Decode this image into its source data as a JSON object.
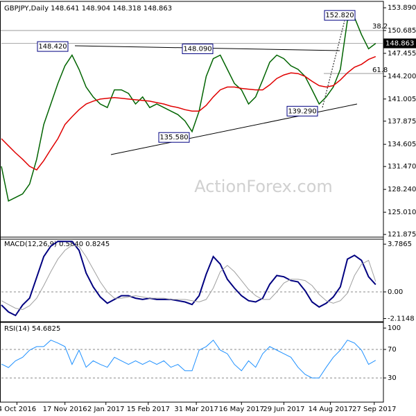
{
  "chart_data": [
    {
      "type": "line",
      "title": "GBPJPY,Daily  148.641 148.904 148.318 148.863",
      "x": [
        0,
        5,
        10,
        15,
        20,
        25,
        30,
        35,
        40,
        45,
        50,
        55,
        60,
        65,
        70,
        75,
        80,
        85,
        90,
        95,
        100,
        105,
        110,
        115,
        120,
        125,
        130,
        135,
        140,
        145,
        150,
        155,
        160,
        165,
        170,
        175,
        180,
        185,
        190,
        195,
        200,
        205,
        210,
        215,
        220,
        225,
        230,
        235,
        240,
        245,
        250,
        255,
        260,
        265
      ],
      "xlim": [
        0,
        270
      ],
      "ylim": [
        121.4,
        154.5
      ],
      "yticks": [
        {
          "value": 153.89,
          "label": "153.890"
        },
        150.685,
        147.455,
        {
          "value": 144.2,
          "label": "144.200"
        },
        141.005,
        137.875,
        134.605,
        {
          "value": 131.47,
          "label": "131.470"
        },
        {
          "value": 128.24,
          "label": "128.240"
        },
        {
          "value": 125.01,
          "label": "125.010"
        },
        121.875
      ],
      "series": [
        {
          "color": "#006400",
          "values": [
            131.5,
            126.6,
            127.1,
            127.6,
            129.0,
            132.5,
            137.4,
            140.3,
            143.2,
            145.7,
            147.2,
            145.2,
            142.7,
            141.3,
            140.3,
            139.8,
            142.3,
            142.3,
            141.8,
            140.3,
            141.3,
            139.8,
            140.3,
            139.8,
            139.3,
            138.8,
            137.9,
            136.4,
            139.3,
            144.2,
            146.7,
            147.2,
            145.2,
            143.2,
            142.3,
            140.3,
            141.3,
            143.7,
            146.2,
            147.2,
            146.7,
            145.7,
            145.2,
            144.2,
            142.3,
            140.3,
            141.3,
            142.7,
            145.2,
            152.1,
            152.5,
            150.1,
            148.1,
            148.863
          ]
        },
        {
          "color": "#e00000",
          "values": [
            135.4,
            134.4,
            133.4,
            132.5,
            131.5,
            131.0,
            132.3,
            133.9,
            135.4,
            137.4,
            138.5,
            139.5,
            140.3,
            140.7,
            141.0,
            141.1,
            141.2,
            141.1,
            141.0,
            140.9,
            140.8,
            140.7,
            140.5,
            140.3,
            140.0,
            139.8,
            139.5,
            139.3,
            139.3,
            140.1,
            141.3,
            142.3,
            142.7,
            142.7,
            142.5,
            142.4,
            142.3,
            142.3,
            143.0,
            143.9,
            144.4,
            144.7,
            144.6,
            144.2,
            143.5,
            142.9,
            142.7,
            142.9,
            143.7,
            144.7,
            145.5,
            145.9,
            146.6,
            147.0
          ]
        }
      ],
      "annotations": [
        {
          "value": 152.82,
          "label": "152.820"
        },
        {
          "value": 148.42,
          "label": "148.420"
        },
        {
          "value": 148.09,
          "label": "148.090"
        },
        {
          "value": 139.29,
          "label": "139.290"
        },
        {
          "value": 135.58,
          "label": "135.580"
        }
      ],
      "current_price": 148.863,
      "fib_levels": [
        38.2,
        61.8
      ],
      "watermark": "ActionForex.com"
    },
    {
      "type": "line",
      "title": "MACD(12,26,9) 0.5840 0.8245",
      "x": [
        0,
        5,
        10,
        15,
        20,
        25,
        30,
        35,
        40,
        45,
        50,
        55,
        60,
        65,
        70,
        75,
        80,
        85,
        90,
        95,
        100,
        105,
        110,
        115,
        120,
        125,
        130,
        135,
        140,
        145,
        150,
        155,
        160,
        165,
        170,
        175,
        180,
        185,
        190,
        195,
        200,
        205,
        210,
        215,
        220,
        225,
        230,
        235,
        240,
        245,
        250,
        255,
        260,
        265
      ],
      "xlim": [
        0,
        270
      ],
      "ylim": [
        -2.31,
        4.18
      ],
      "yticks": [
        3.7865,
        {
          "value": 0,
          "label": "0.00"
        },
        -2.1148
      ],
      "levels": [
        0
      ],
      "series": [
        {
          "color": "#000080",
          "width": 2,
          "values": [
            -1.04,
            -1.59,
            -1.87,
            -1.04,
            -0.49,
            1.15,
            2.8,
            3.63,
            4.01,
            4.0,
            4.0,
            3.3,
            1.5,
            0.4,
            -0.4,
            -0.9,
            -0.6,
            -0.3,
            -0.3,
            -0.5,
            -0.6,
            -0.5,
            -0.6,
            -0.6,
            -0.6,
            -0.7,
            -0.8,
            -1.0,
            -0.3,
            1.4,
            2.8,
            2.2,
            1.0,
            0.3,
            -0.3,
            -0.7,
            -0.8,
            -0.5,
            0.6,
            1.3,
            1.2,
            0.9,
            0.8,
            0.1,
            -0.8,
            -1.2,
            -0.9,
            -0.4,
            0.4,
            2.6,
            2.9,
            2.5,
            1.2,
            0.584
          ]
        },
        {
          "color": "#a0a0a0",
          "width": 1,
          "values": [
            -0.7,
            -1.0,
            -1.3,
            -1.4,
            -1.1,
            -0.5,
            0.5,
            1.6,
            2.6,
            3.3,
            3.7,
            3.6,
            2.8,
            1.8,
            0.8,
            0.0,
            -0.5,
            -0.5,
            -0.4,
            -0.3,
            -0.4,
            -0.5,
            -0.5,
            -0.5,
            -0.6,
            -0.6,
            -0.6,
            -0.7,
            -0.8,
            -0.6,
            0.3,
            1.6,
            2.1,
            1.6,
            0.9,
            0.2,
            -0.3,
            -0.6,
            -0.6,
            0.0,
            0.7,
            1.0,
            1.0,
            0.9,
            0.5,
            -0.2,
            -0.7,
            -0.9,
            -0.7,
            -0.1,
            1.3,
            2.2,
            2.5,
            0.8245
          ]
        }
      ]
    },
    {
      "type": "line",
      "title": "RSI(14) 54.6825",
      "x": [
        0,
        5,
        10,
        15,
        20,
        25,
        30,
        35,
        40,
        45,
        50,
        55,
        60,
        65,
        70,
        75,
        80,
        85,
        90,
        95,
        100,
        105,
        110,
        115,
        120,
        125,
        130,
        135,
        140,
        145,
        150,
        155,
        160,
        165,
        170,
        175,
        180,
        185,
        190,
        195,
        200,
        205,
        210,
        215,
        220,
        225,
        230,
        235,
        240,
        245,
        250,
        255,
        260,
        265
      ],
      "xlim": [
        0,
        270
      ],
      "ylim": [
        -2,
        106
      ],
      "yticks": [
        100,
        70,
        30
      ],
      "levels": [
        70,
        30
      ],
      "xticks": [
        {
          "value": 11,
          "label": "4 Oct 2016"
        },
        {
          "value": 45,
          "label": "17 Nov 2016"
        },
        {
          "value": 74,
          "label": "2 Jan 2017"
        },
        {
          "value": 104,
          "label": "15 Feb 2017"
        },
        {
          "value": 138,
          "label": "31 Mar 2017"
        },
        {
          "value": 170,
          "label": "16 May 2017"
        },
        {
          "value": 200,
          "label": "29 Jun 2017"
        },
        {
          "value": 233,
          "label": "14 Aug 2017"
        },
        {
          "value": 264,
          "label": "27 Sep 2017"
        }
      ],
      "series": [
        {
          "color": "#1e90ff",
          "width": 1,
          "values": [
            49.5,
            44.6,
            54,
            59,
            69,
            74,
            74,
            83,
            79,
            74,
            49,
            69,
            45,
            54,
            49,
            45,
            59,
            54,
            49,
            54,
            49,
            54,
            49,
            54,
            45,
            49,
            40,
            40,
            69,
            74,
            83,
            69,
            64,
            49,
            40,
            54,
            45,
            64,
            74,
            69,
            64,
            59,
            45,
            35,
            30,
            30,
            45,
            59,
            69,
            83,
            79,
            69,
            49,
            54.6825
          ]
        }
      ]
    }
  ]
}
